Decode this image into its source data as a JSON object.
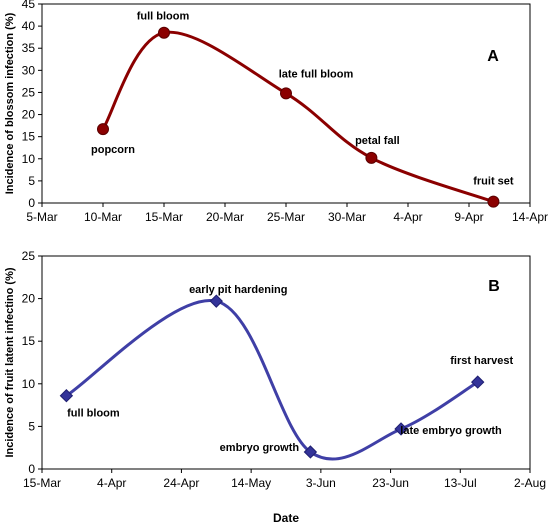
{
  "chart_data": [
    {
      "type": "line",
      "panel_label": "A",
      "ylabel": "Incidence of blossom infection (%)",
      "xlabel": "",
      "x_type": "date",
      "x_ticks": [
        "2000-03-05",
        "2000-03-10",
        "2000-03-15",
        "2000-03-20",
        "2000-03-25",
        "2000-03-30",
        "2000-04-04",
        "2000-04-09",
        "2000-04-14"
      ],
      "x_tick_labels": [
        "5-Mar",
        "10-Mar",
        "15-Mar",
        "20-Mar",
        "25-Mar",
        "30-Mar",
        "4-Apr",
        "9-Apr",
        "14-Apr"
      ],
      "ylim": [
        0,
        45
      ],
      "y_ticks": [
        0,
        5,
        10,
        15,
        20,
        25,
        30,
        35,
        40,
        45
      ],
      "grid": false,
      "series": [
        {
          "color": "#8B0000",
          "marker": "circle",
          "smooth": true,
          "points": [
            {
              "x": "2000-03-10",
              "y": 16.7,
              "label": "popcorn"
            },
            {
              "x": "2000-03-15",
              "y": 38.5,
              "label": "full bloom"
            },
            {
              "x": "2000-03-25",
              "y": 24.8,
              "label": "late full bloom"
            },
            {
              "x": "2000-04-01",
              "y": 10.2,
              "label": "petal fall"
            },
            {
              "x": "2000-04-11",
              "y": 0.3,
              "label": "fruit set"
            }
          ]
        }
      ]
    },
    {
      "type": "line",
      "panel_label": "B",
      "ylabel": "Incidence of fruit latent infectino (%)",
      "xlabel": "Date",
      "x_type": "date",
      "x_ticks": [
        "2000-03-15",
        "2000-04-04",
        "2000-04-24",
        "2000-05-14",
        "2000-06-03",
        "2000-06-23",
        "2000-07-13",
        "2000-08-02"
      ],
      "x_tick_labels": [
        "15-Mar",
        "4-Apr",
        "24-Apr",
        "14-May",
        "3-Jun",
        "23-Jun",
        "13-Jul",
        "2-Aug"
      ],
      "ylim": [
        0,
        25
      ],
      "y_ticks": [
        0,
        5,
        10,
        15,
        20,
        25
      ],
      "grid": false,
      "series": [
        {
          "color": "#333399",
          "line_color": "#3F3FA6",
          "marker": "diamond",
          "smooth": true,
          "points": [
            {
              "x": "2000-03-22",
              "y": 8.6,
              "label": "full bloom"
            },
            {
              "x": "2000-05-04",
              "y": 19.7,
              "label": "early pit hardening"
            },
            {
              "x": "2000-05-31",
              "y": 2.0,
              "label": "embryo growth"
            },
            {
              "x": "2000-06-26",
              "y": 4.7,
              "label": "late embryo growth"
            },
            {
              "x": "2000-07-18",
              "y": 10.2,
              "label": "first harvest"
            }
          ]
        }
      ]
    }
  ]
}
